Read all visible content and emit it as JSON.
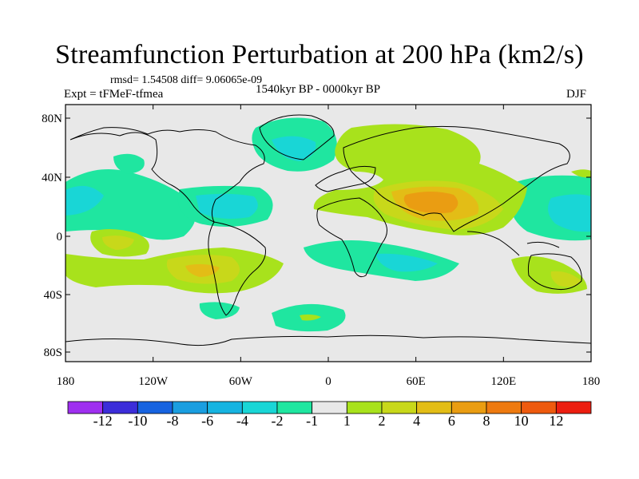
{
  "title": "Streamfunction Perturbation at 200 hPa (km2/s)",
  "stats": "rmsd= 1.54508 diff= 9.06065e-09",
  "experiment": "Expt = tFMeF-tfmea",
  "period": "1540kyr BP - 0000kyr BP",
  "season": "DJF",
  "lat_labels": [
    "80N",
    "40N",
    "0",
    "40S",
    "80S"
  ],
  "lon_labels": [
    "180",
    "120W",
    "60W",
    "0",
    "60E",
    "120E",
    "180"
  ],
  "colorbar": {
    "colors": [
      "#9f2ff0",
      "#3c2dd9",
      "#1763e0",
      "#1a9ee0",
      "#16b4e1",
      "#19d6d6",
      "#1fe6a0",
      "#e8e8e8",
      "#a8e21c",
      "#c8d81a",
      "#e3bd16",
      "#ea9d12",
      "#ee7a10",
      "#ee5a0e",
      "#ec1e10"
    ],
    "labels": [
      "-12",
      "-10",
      "-8",
      "-6",
      "-4",
      "-2",
      "-1",
      "1",
      "2",
      "4",
      "6",
      "8",
      "10",
      "12"
    ]
  },
  "colors": {
    "background": "#e8e8e8",
    "coast": "#000000"
  }
}
